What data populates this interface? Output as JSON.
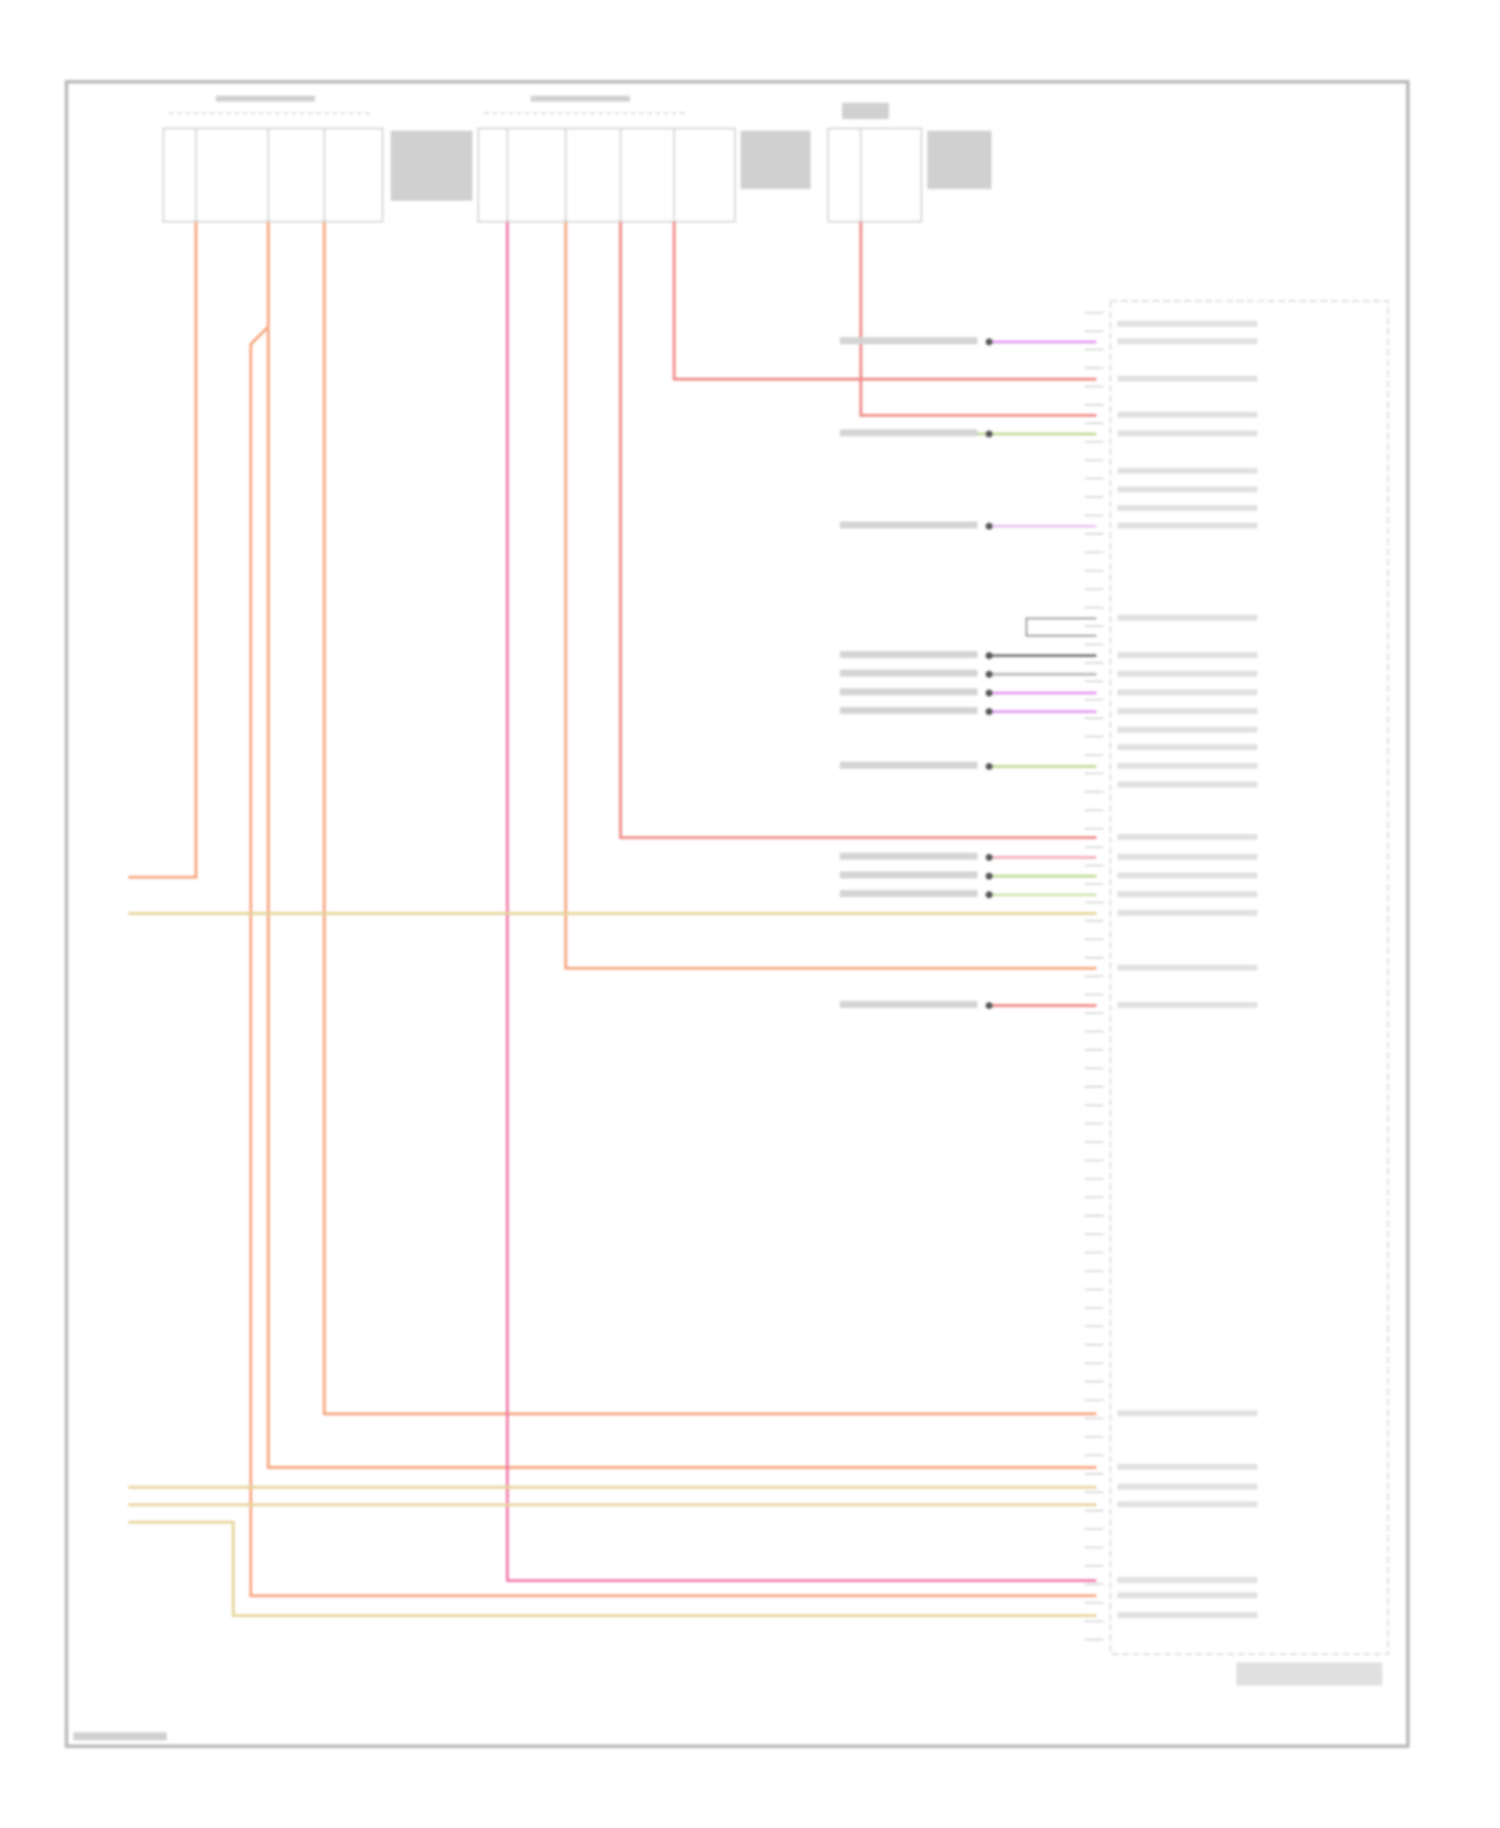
{
  "diagram": {
    "type": "wiring-diagram",
    "colors": {
      "frame": "#b9b9b9",
      "box": "#d6d6d6",
      "orange_wire": "#f6a57e",
      "red_wire": "#f08a86",
      "pink_wire": "#f07aa8",
      "tan_wire": "#e6d49a",
      "purple_wire": "#e49af2",
      "green_wire": "#c2dc98",
      "connector_dot": "#555555"
    },
    "fuse_boxes": 3,
    "fuses_per_box": [
      3,
      4,
      1
    ],
    "module_pins_visible": true
  }
}
